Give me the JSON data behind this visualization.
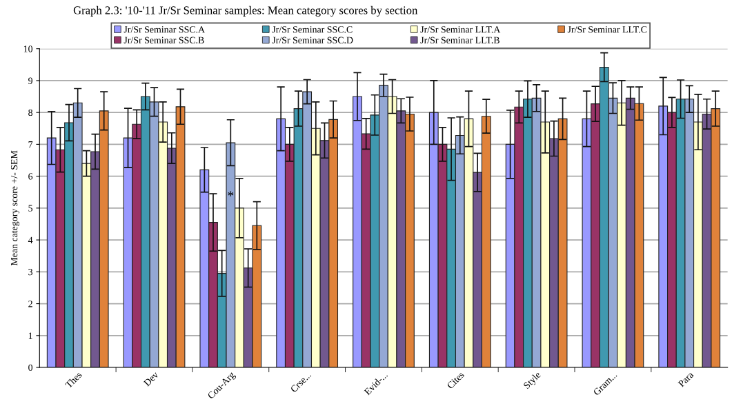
{
  "chart_data": {
    "type": "bar",
    "title": "Graph 2.3: '10-'11 Jr/Sr Seminar samples: Mean category scores by section",
    "ylabel": "Mean category score +/- SEM",
    "categories": [
      "Thes",
      "Dev",
      "Cou-Arg",
      "Crse...",
      "Evid-...",
      "Cites",
      "Style",
      "Gram...",
      "Para"
    ],
    "series": [
      {
        "name": "Jr/Sr Seminar SSC.A",
        "color": "#9999ff",
        "values": [
          7.2,
          7.2,
          6.2,
          7.8,
          8.5,
          8.0,
          7.0,
          7.8,
          8.2
        ],
        "errors": [
          0.83,
          0.93,
          0.7,
          1.0,
          0.75,
          1.0,
          1.07,
          0.87,
          0.9
        ]
      },
      {
        "name": "Jr/Sr Seminar SSC.B",
        "color": "#993366",
        "values": [
          6.83,
          7.63,
          4.55,
          7.0,
          7.33,
          7.0,
          8.17,
          8.27,
          8.0
        ],
        "errors": [
          0.7,
          0.45,
          0.9,
          0.53,
          0.48,
          0.53,
          0.5,
          0.55,
          0.47
        ]
      },
      {
        "name": "Jr/Sr Seminar SSC.C",
        "color": "#4099b0",
        "values": [
          7.68,
          8.5,
          2.95,
          8.12,
          7.92,
          6.85,
          8.42,
          9.42,
          8.42
        ],
        "errors": [
          0.57,
          0.42,
          0.72,
          0.55,
          0.63,
          0.98,
          0.57,
          0.45,
          0.6
        ]
      },
      {
        "name": "Jr/Sr Seminar SSC.D",
        "color": "#94a8d4",
        "values": [
          8.3,
          8.33,
          7.05,
          8.65,
          8.85,
          7.28,
          8.45,
          8.45,
          8.42
        ],
        "errors": [
          0.45,
          0.45,
          0.72,
          0.38,
          0.35,
          0.58,
          0.42,
          0.48,
          0.42
        ]
      },
      {
        "name": "Jr/Sr Seminar LLT.A",
        "color": "#ffffcc",
        "values": [
          6.4,
          7.7,
          5.0,
          7.5,
          8.5,
          7.8,
          7.7,
          8.3,
          7.7
        ],
        "errors": [
          0.4,
          0.63,
          0.93,
          0.83,
          0.53,
          0.87,
          0.97,
          0.7,
          0.87
        ]
      },
      {
        "name": "Jr/Sr Seminar LLT.B",
        "color": "#72588f",
        "values": [
          6.77,
          6.88,
          3.12,
          7.12,
          8.05,
          6.12,
          7.18,
          8.45,
          7.95
        ],
        "errors": [
          0.55,
          0.48,
          0.6,
          0.55,
          0.38,
          0.6,
          0.55,
          0.35,
          0.47
        ]
      },
      {
        "name": "Jr/Sr Seminar LLT.C",
        "color": "#e0823a",
        "values": [
          8.05,
          8.18,
          4.45,
          7.78,
          7.95,
          7.88,
          7.8,
          8.28,
          8.12
        ],
        "errors": [
          0.6,
          0.55,
          0.75,
          0.58,
          0.53,
          0.53,
          0.65,
          0.52,
          0.55
        ]
      }
    ],
    "annotations": [
      {
        "text": "*",
        "x": "Cou-Arg",
        "y": 5.35
      }
    ],
    "ylim": [
      0,
      10
    ],
    "yticks": [
      0,
      1,
      2,
      3,
      4,
      5,
      6,
      7,
      8,
      9,
      10
    ],
    "grid": "y",
    "legend": "top"
  }
}
